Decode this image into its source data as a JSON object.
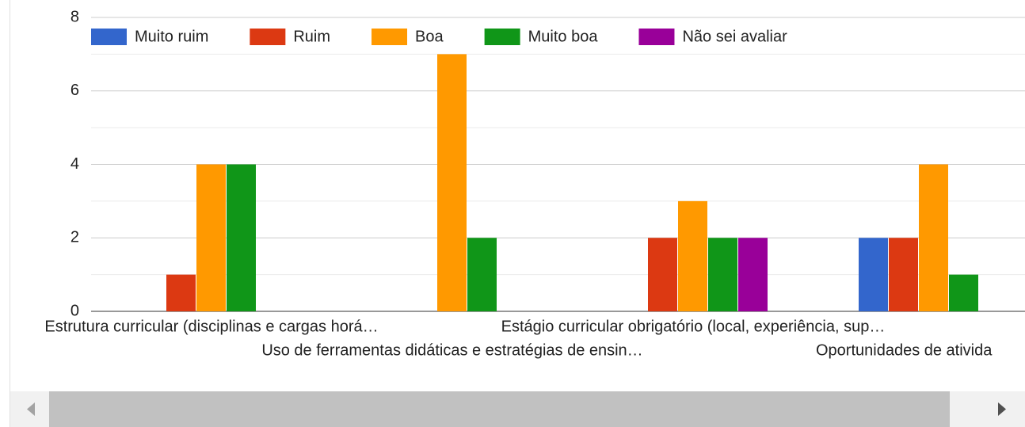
{
  "chart_data": {
    "type": "bar",
    "categories": [
      "Estrutura curricular (disciplinas e cargas horá…",
      "Uso de ferramentas didáticas e estratégias de ensin…",
      "Estágio curricular obrigatório (local, experiência, sup…",
      "Oportunidades de ativida"
    ],
    "series": [
      {
        "name": "Muito ruim",
        "color": "#3366cc",
        "values": [
          0,
          0,
          0,
          2
        ]
      },
      {
        "name": "Ruim",
        "color": "#dc3912",
        "values": [
          1,
          0,
          2,
          2
        ]
      },
      {
        "name": "Boa",
        "color": "#ff9900",
        "values": [
          4,
          7,
          3,
          4
        ]
      },
      {
        "name": "Muito boa",
        "color": "#109618",
        "values": [
          4,
          2,
          2,
          1
        ]
      },
      {
        "name": "Não sei avaliar",
        "color": "#990099",
        "values": [
          0,
          0,
          2,
          0
        ]
      }
    ],
    "ylim": [
      0,
      8
    ],
    "yticks": [
      0,
      2,
      4,
      6,
      8
    ],
    "minor_yticks": [
      1,
      3,
      5,
      7
    ],
    "grid": true,
    "legend": "top"
  }
}
